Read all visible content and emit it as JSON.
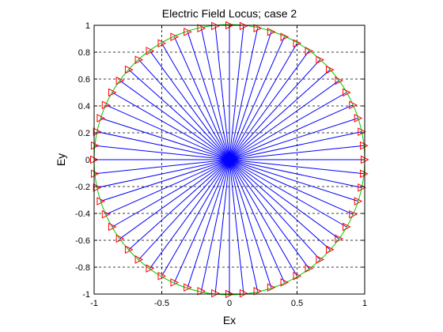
{
  "chart_data": {
    "type": "line",
    "title": "Electric Field Locus; case 2",
    "xlabel": "Ex",
    "ylabel": "Ey",
    "xlim": [
      -1,
      1
    ],
    "ylim": [
      -1,
      1
    ],
    "xticks": [
      "-1",
      "-0.5",
      "0",
      "0.5",
      "1"
    ],
    "xtick_values": [
      -1,
      -0.5,
      0,
      0.5,
      1
    ],
    "yticks": [
      "1",
      "0.8",
      "0.6",
      "0.4",
      "0.2",
      "0",
      "-0.2",
      "-0.4",
      "-0.6",
      "-0.8",
      "-1"
    ],
    "ytick_values": [
      1,
      0.8,
      0.6,
      0.4,
      0.2,
      0,
      -0.2,
      -0.4,
      -0.6,
      -0.8,
      -1
    ],
    "grid": true,
    "grid_style": "dashed",
    "locus": {
      "shape": "circle",
      "center": [
        0,
        0
      ],
      "radius": 1,
      "color": "#00cc00"
    },
    "field_vectors": {
      "count": 60,
      "magnitude": 1,
      "angle_start_deg": 0,
      "angle_step_deg": 6,
      "line_color": "#0000ff",
      "marker": "triangle-right",
      "marker_color": "#ff0000"
    }
  }
}
